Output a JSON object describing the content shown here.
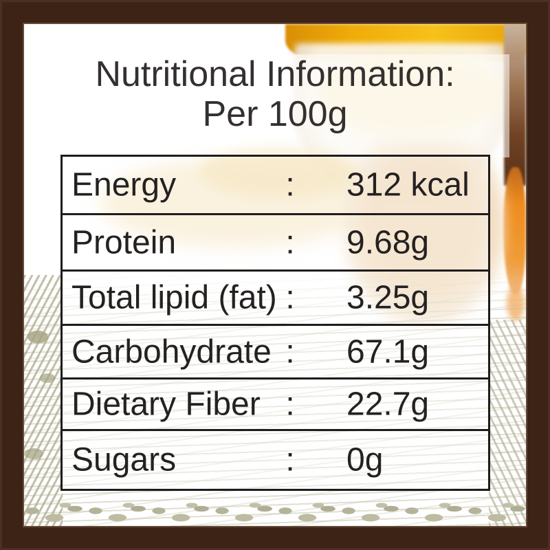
{
  "title": {
    "line1": "Nutritional Information:",
    "line2": "Per 100g"
  },
  "table": {
    "colon": ":",
    "rows": [
      {
        "name": "Energy",
        "value": "312 kcal"
      },
      {
        "name": "Protein",
        "value": "9.68g"
      },
      {
        "name": "Total lipid (fat)",
        "value": "3.25g"
      },
      {
        "name": "Carbohydrate",
        "value": "67.1g"
      },
      {
        "name": "Dietary Fiber",
        "value": "22.7g"
      },
      {
        "name": "Sugars",
        "value": "0g"
      }
    ]
  },
  "colors": {
    "frame_brown": "#3D2315",
    "turmeric_gold": "#F0AC08",
    "root_orange": "#EF8C1E",
    "field_sage": "#BDBBA2",
    "text_dark": "#242121"
  }
}
